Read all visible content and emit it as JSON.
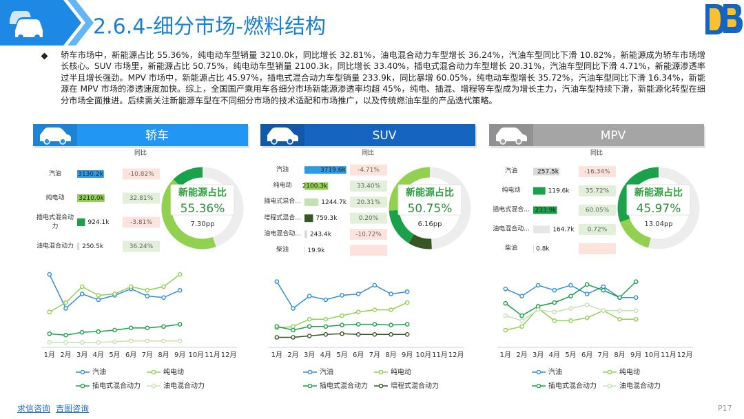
{
  "header": {
    "title": "2.6.4-细分市场-燃料结构"
  },
  "summary": "轿车市场中，新能源占比 55.36%，纯电动车型销量 3210.0k，同比增长 32.81%，油电混合动力车型增长 36.24%，汽油车型同比下滑 10.82%，新能源成为轿车市场增长核心。SUV 市场里，新能源占比 50.75%，纯电动车型销量 2100.3k，同比增长 33.40%，插电式混合动力车型增长 20.31%，汽油车型同比下滑 4.71%，新能源渗透率过半且增长强劲。MPV 市场中，新能源占比 45.97%，插电式混合动力车型销量 233.9k，同比暴增 60.05%，纯电动车型增长 35.72%，汽油车型同比下滑 16.34%，新能源在 MPV 市场的渗透速度加快。综上，全国国产乘用车各细分市场新能源渗透率均超 45%，纯电、插混、增程等车型成为增长主力，汽油车型持续下滑，新能源化转型在细分市场全面推进。后续需关注新能源车型在不同细分市场的技术适配和市场推广，以及传统燃油车型的产品迭代策略。",
  "panels": [
    {
      "title": "轿车",
      "header_color": "#2196f3",
      "bars": {
        "type": "bar",
        "yoy_title": "同比",
        "categories": [
          "汽油",
          "纯电动",
          "插电式混合动力",
          "油电混合动力"
        ],
        "values": [
          3130.2,
          3210.0,
          924.1,
          250.5
        ],
        "value_labels": [
          "3130.2k",
          "3210.0k",
          "924.1k",
          "250.5k"
        ],
        "colors": [
          "#2e9ae6",
          "#92d050",
          "#1aa14a",
          "#d9d9d9"
        ],
        "xlim": [
          0,
          5000
        ],
        "yoy": [
          -10.82,
          32.81,
          -3.81,
          36.24
        ],
        "yoy_labels": [
          "-10.82%",
          "32.81%",
          "-3.81%",
          "36.24%"
        ]
      },
      "donut": {
        "type": "pie",
        "values": [
          44.64,
          42.74,
          12.62
        ],
        "colors": [
          "#ededed",
          "#92d050",
          "#1aa14a"
        ],
        "center_label": "新能源占比",
        "center_value": "55.36%",
        "note": "7.30pp"
      },
      "lines": {
        "type": "line",
        "x": [
          "1月",
          "2月",
          "3月",
          "4月",
          "5月",
          "6月",
          "7月",
          "8月",
          "9月",
          "10月",
          "11月",
          "12月"
        ],
        "ylim": [
          0,
          100
        ],
        "series": [
          {
            "name": "汽油",
            "color": "#2f8fd8",
            "values": [
              97,
              50,
              70,
              62,
              68,
              77,
              67,
              65,
              75,
              null,
              null,
              null
            ]
          },
          {
            "name": "纯电动",
            "color": "#92d050",
            "values": [
              45,
              58,
              80,
              68,
              70,
              80,
              75,
              80,
              97,
              null,
              null,
              null
            ]
          },
          {
            "name": "插电式混合动力",
            "color": "#1aa14a",
            "values": [
              15,
              13,
              17,
              18,
              20,
              23,
              23,
              25,
              28,
              null,
              null,
              null
            ]
          },
          {
            "name": "油电混合动力",
            "color": "#c5e0b4",
            "values": [
              3,
              3,
              3,
              3,
              4,
              5,
              5,
              5,
              5,
              null,
              null,
              null
            ]
          }
        ]
      }
    },
    {
      "title": "SUV",
      "header_color": "#1565c0",
      "bars": {
        "type": "bar",
        "yoy_title": "同比",
        "categories": [
          "汽油",
          "纯电动",
          "插电式混合...",
          "增程式混合...",
          "油电混合动...",
          "柴油"
        ],
        "values": [
          3719.6,
          2100.3,
          1244.7,
          759.3,
          243.4,
          19.9
        ],
        "value_labels": [
          "3719.6k",
          "2100.3k",
          "1244.7k",
          "759.3k",
          "243.4k",
          "19.9k"
        ],
        "colors": [
          "#2e9ae6",
          "#92d050",
          "#c5e0b4",
          "#375623",
          "#d9d9d9",
          "#d9d9d9"
        ],
        "xlim": [
          0,
          3800
        ],
        "yoy": [
          -4.71,
          33.4,
          20.31,
          0.2,
          -10.72,
          null
        ],
        "yoy_labels": [
          "-4.71%",
          "33.40%",
          "20.31%",
          "0.20%",
          "-10.72%",
          null
        ]
      },
      "donut": {
        "type": "pie",
        "values": [
          49.25,
          9.39,
          15.39,
          25.97
        ],
        "colors": [
          "#ededed",
          "#375623",
          "#1aa14a",
          "#92d050"
        ],
        "center_label": "新能源占比",
        "center_value": "50.75%",
        "note": "6.16pp"
      },
      "lines": {
        "type": "line",
        "x": [
          "1月",
          "2月",
          "3月",
          "4月",
          "5月",
          "6月",
          "7月",
          "8月",
          "9月",
          "10月",
          "11月",
          "12月"
        ],
        "ylim": [
          0,
          100
        ],
        "series": [
          {
            "name": "汽油",
            "color": "#2f8fd8",
            "values": [
              87,
              50,
              67,
              62,
              68,
              70,
              82,
              70,
              73,
              null,
              null,
              null
            ]
          },
          {
            "name": "纯电动",
            "color": "#92d050",
            "values": [
              23,
              25,
              35,
              35,
              40,
              45,
              48,
              48,
              58,
              null,
              null,
              null
            ]
          },
          {
            "name": "插电式混合动力",
            "color": "#1aa14a",
            "values": [
              25,
              20,
              25,
              25,
              27,
              28,
              28,
              27,
              28,
              null,
              null,
              null
            ]
          },
          {
            "name": "增程式混合动力",
            "color": "#375623",
            "values": [
              10,
              10,
              12,
              14,
              15,
              14,
              14,
              14,
              14,
              null,
              null,
              null
            ]
          }
        ]
      }
    },
    {
      "title": "MPV",
      "header_color": "#a5a5a5",
      "bars": {
        "type": "bar",
        "yoy_title": "同比",
        "categories": [
          "汽油",
          "纯电动",
          "插电式混合...",
          "油电混合动...",
          "柴油"
        ],
        "values": [
          257.5,
          119.6,
          233.9,
          164.7,
          0.8
        ],
        "value_labels": [
          "257.5k",
          "119.6k",
          "233.9k",
          "164.7k",
          "0.8k"
        ],
        "colors": [
          "#d9d9d9",
          "#1aa14a",
          "#1aa14a",
          "#e6e6e6",
          "#d9d9d9"
        ],
        "xlim": [
          0,
          420
        ],
        "yoy": [
          -16.34,
          35.72,
          60.05,
          0.72,
          null
        ],
        "yoy_labels": [
          "-16.34%",
          "35.72%",
          "60.05%",
          "0.72%",
          null
        ]
      },
      "donut": {
        "type": "pie",
        "values": [
          54.03,
          15.4,
          30.57
        ],
        "colors": [
          "#ededed",
          "#92d050",
          "#1aa14a"
        ],
        "center_label": "新能源占比",
        "center_value": "45.97%",
        "note": "13.04pp"
      },
      "lines": {
        "type": "line",
        "x": [
          "1月",
          "2月",
          "3月",
          "4月",
          "5月",
          "6月",
          "7月",
          "8月",
          "9月",
          "10月",
          "11月",
          "12月"
        ],
        "ylim": [
          0,
          100
        ],
        "series": [
          {
            "name": "汽油",
            "color": "#2f8fd8",
            "values": [
              77,
              67,
              82,
              75,
              82,
              70,
              80,
              65,
              65,
              null,
              null,
              null
            ]
          },
          {
            "name": "纯电动",
            "color": "#92d050",
            "values": [
              20,
              25,
              50,
              33,
              33,
              37,
              47,
              35,
              35,
              null,
              null,
              null
            ]
          },
          {
            "name": "插电式混合动力",
            "color": "#1aa14a",
            "values": [
              57,
              40,
              53,
              58,
              67,
              83,
              75,
              65,
              87,
              null,
              null,
              null
            ]
          },
          {
            "name": "油电混合动力",
            "color": "#c5e0b4",
            "values": [
              40,
              33,
              48,
              45,
              50,
              55,
              47,
              47,
              47,
              null,
              null,
              null
            ]
          }
        ]
      }
    }
  ],
  "footer": {
    "links": [
      "求信咨询",
      "吉图咨询"
    ],
    "page": "P17"
  }
}
